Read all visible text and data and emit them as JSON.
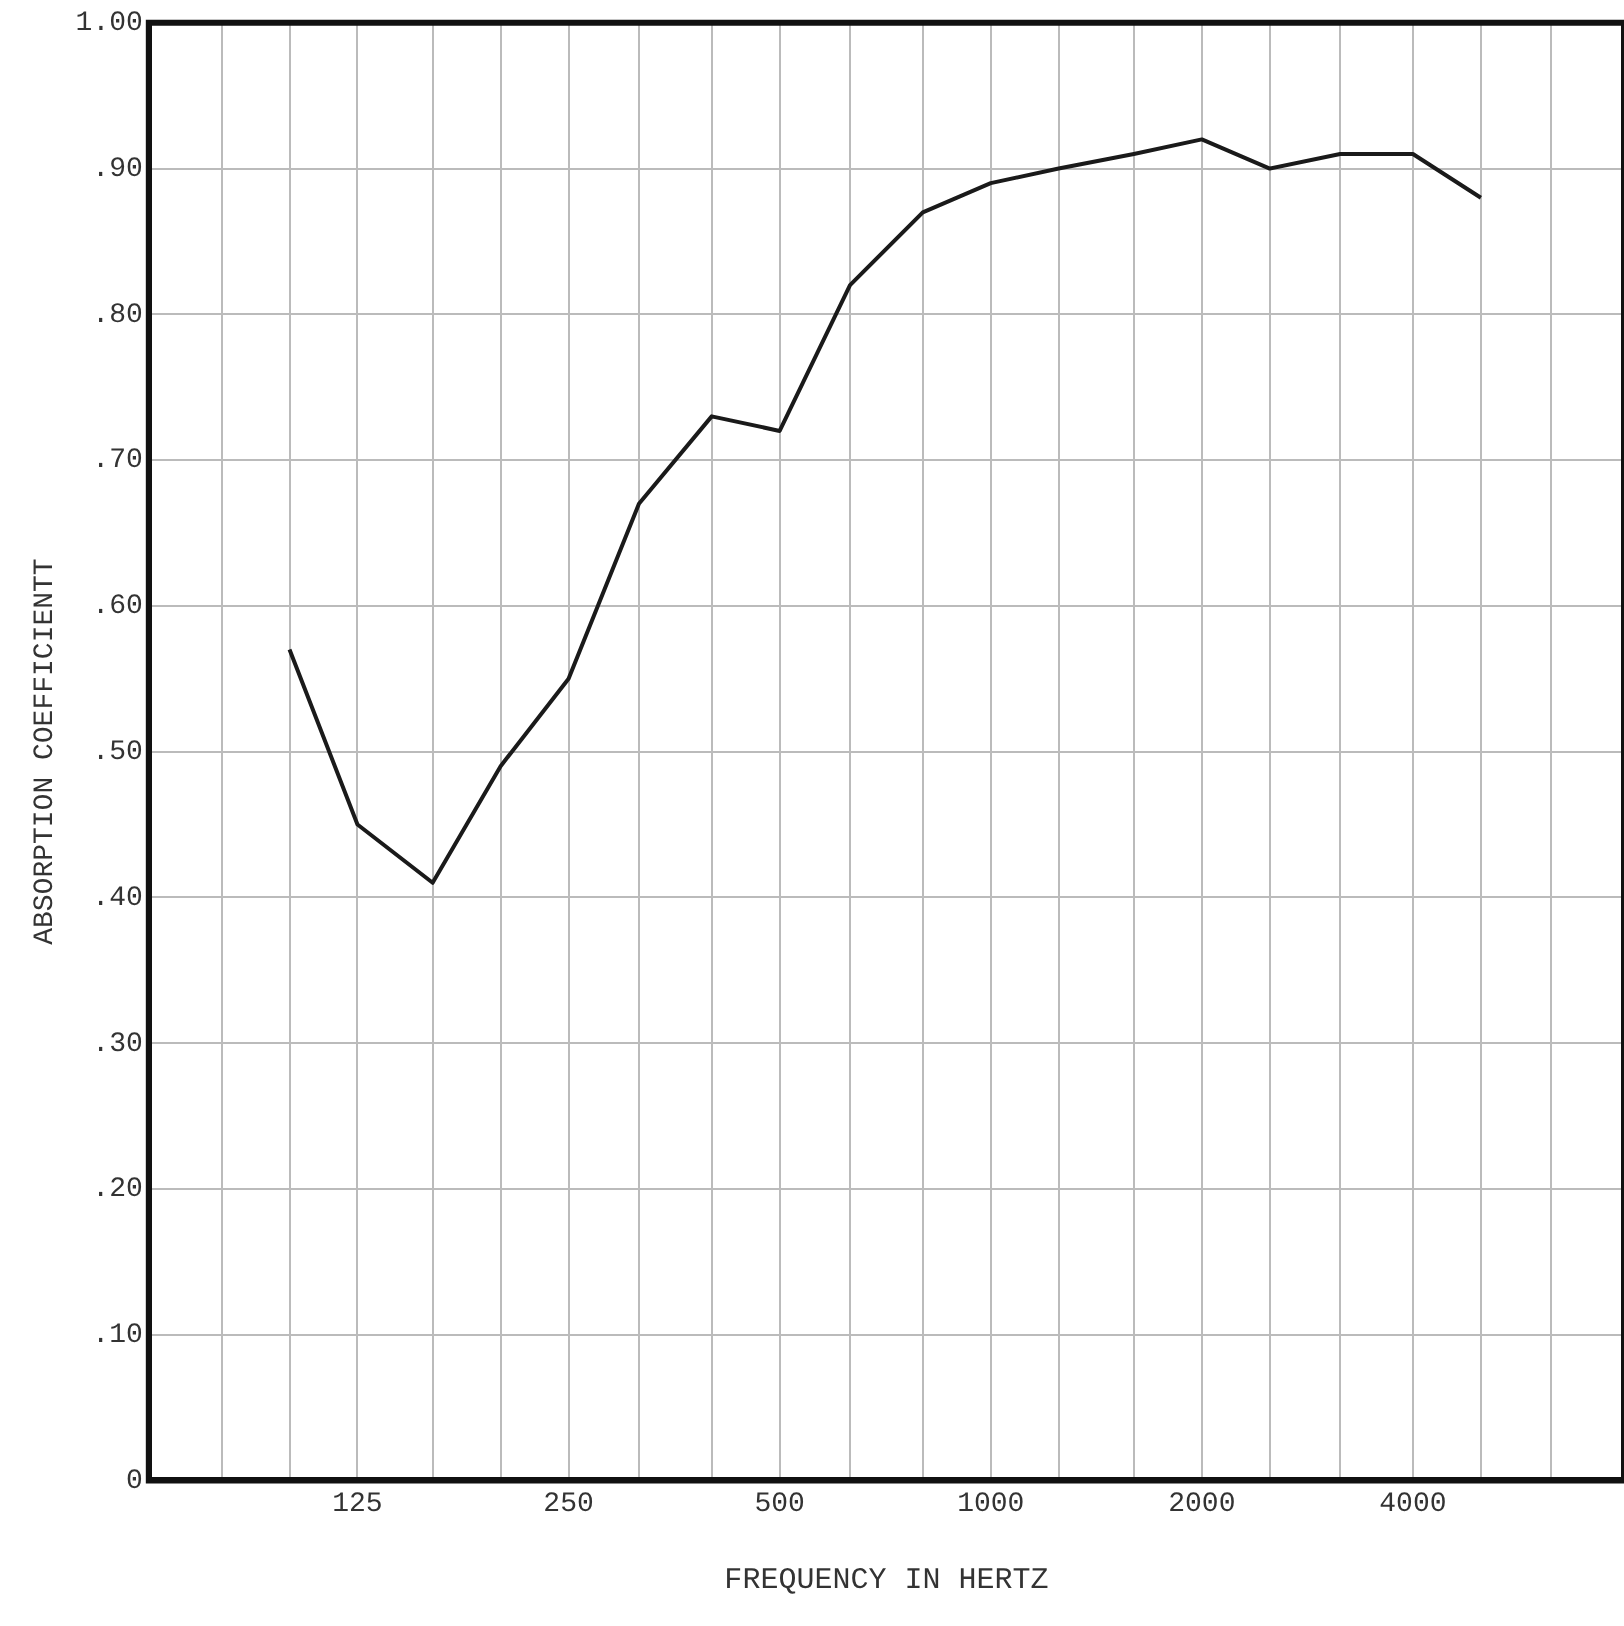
{
  "chart_data": {
    "type": "line",
    "xlabel": "FREQUENCY IN HERTZ",
    "ylabel": "ABSORPTION COEFFICIENTT",
    "log": "x",
    "x": [
      100,
      125,
      160,
      200,
      250,
      315,
      400,
      500,
      630,
      800,
      1000,
      1250,
      1600,
      2000,
      2500,
      3150,
      4000,
      5000
    ],
    "series": [
      {
        "color": "#1a1a1a",
        "values": [
          0.57,
          0.45,
          0.41,
          0.49,
          0.55,
          0.67,
          0.73,
          0.72,
          0.82,
          0.87,
          0.89,
          0.9,
          0.91,
          0.92,
          0.9,
          0.91,
          0.91,
          0.88
        ]
      }
    ],
    "xlim": [
      63,
      8000
    ],
    "xticks": [
      {
        "value": 80,
        "label": null
      },
      {
        "value": 100,
        "label": null
      },
      125,
      {
        "value": 160,
        "label": null
      },
      {
        "value": 200,
        "label": null
      },
      250,
      {
        "value": 315,
        "label": null
      },
      {
        "value": 400,
        "label": null
      },
      500,
      {
        "value": 630,
        "label": null
      },
      {
        "value": 800,
        "label": null
      },
      1000,
      {
        "value": 1250,
        "label": null
      },
      {
        "value": 1600,
        "label": null
      },
      2000,
      {
        "value": 2500,
        "label": null
      },
      {
        "value": 3150,
        "label": null
      },
      4000,
      {
        "value": 5000,
        "label": null
      },
      {
        "value": 6300,
        "label": null
      }
    ],
    "ylim": [
      0,
      1
    ],
    "yticks": [
      0,
      {
        "value": 0.1,
        "label": ".10"
      },
      {
        "value": 0.2,
        "label": ".20"
      },
      {
        "value": 0.3,
        "label": ".30"
      },
      {
        "value": 0.4,
        "label": ".40"
      },
      {
        "value": 0.5,
        "label": ".50"
      },
      {
        "value": 0.6,
        "label": ".60"
      },
      {
        "value": 0.7,
        "label": ".70"
      },
      {
        "value": 0.8,
        "label": ".80"
      },
      {
        "value": 0.9,
        "label": ".90"
      },
      {
        "value": 1,
        "label": "1.00"
      }
    ],
    "grid": true,
    "legend": false,
    "marker": "none",
    "line_style": "solid"
  }
}
